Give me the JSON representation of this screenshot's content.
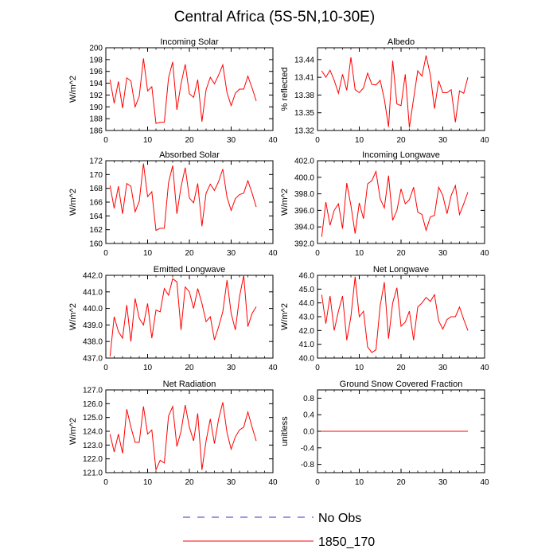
{
  "title": "Central Africa (5S-5N,10-30E)",
  "legend": [
    {
      "label": "No Obs",
      "color": "#3333cc",
      "style": "dashed"
    },
    {
      "label": "1850_170",
      "color": "#ff0000",
      "style": "solid"
    }
  ],
  "chart_data": [
    {
      "type": "line",
      "title": "Incoming Solar",
      "ylabel": "W/m^2",
      "xlim": [
        0,
        40
      ],
      "ylim": [
        186,
        200
      ],
      "xticks": [
        "0",
        "10",
        "20",
        "30",
        "40"
      ],
      "yticks": [
        "186",
        "188",
        "190",
        "192",
        "194",
        "196",
        "198",
        "200"
      ],
      "series": [
        {
          "name": "1850_170",
          "x": [
            1,
            2,
            3,
            4,
            5,
            6,
            7,
            8,
            9,
            10,
            11,
            12,
            13,
            14,
            15,
            16,
            17,
            18,
            19,
            20,
            21,
            22,
            23,
            24,
            25,
            26,
            27,
            28,
            29,
            30,
            31,
            32,
            33,
            34,
            35,
            36
          ],
          "values": [
            194.6,
            190.6,
            194.3,
            189.8,
            194.9,
            194.4,
            190.0,
            191.8,
            198.2,
            192.7,
            193.4,
            187.2,
            187.4,
            187.4,
            194.9,
            197.6,
            189.5,
            193.9,
            197.2,
            192.2,
            191.6,
            194.6,
            187.5,
            192.9,
            195.0,
            193.9,
            195.4,
            197.1,
            192.4,
            190.2,
            192.3,
            193.0,
            193.0,
            195.2,
            193.2,
            191.0
          ]
        }
      ]
    },
    {
      "type": "line",
      "title": "Albedo",
      "ylabel": "% reflected",
      "xlim": [
        0,
        40
      ],
      "ylim": [
        13.32,
        13.46
      ],
      "xticks": [
        "0",
        "10",
        "20",
        "30",
        "40"
      ],
      "yticks": [
        "13.32",
        "13.35",
        "13.38",
        "13.41",
        "13.44"
      ],
      "series": [
        {
          "name": "1850_170",
          "x": [
            1,
            2,
            3,
            4,
            5,
            6,
            7,
            8,
            9,
            10,
            11,
            12,
            13,
            14,
            15,
            16,
            17,
            18,
            19,
            20,
            21,
            22,
            23,
            24,
            25,
            26,
            27,
            28,
            29,
            30,
            31,
            32,
            33,
            34,
            35,
            36
          ],
          "values": [
            13.421,
            13.41,
            13.422,
            13.405,
            13.383,
            13.415,
            13.388,
            13.444,
            13.389,
            13.384,
            13.392,
            13.417,
            13.398,
            13.397,
            13.405,
            13.373,
            13.326,
            13.438,
            13.365,
            13.362,
            13.415,
            13.325,
            13.374,
            13.421,
            13.412,
            13.447,
            13.414,
            13.357,
            13.404,
            13.384,
            13.384,
            13.389,
            13.334,
            13.387,
            13.383,
            13.41
          ]
        }
      ]
    },
    {
      "type": "line",
      "title": "Absorbed Solar",
      "ylabel": "W/m^2",
      "xlim": [
        0,
        40
      ],
      "ylim": [
        160,
        172
      ],
      "xticks": [
        "0",
        "10",
        "20",
        "30",
        "40"
      ],
      "yticks": [
        "160",
        "162",
        "164",
        "166",
        "168",
        "170",
        "172"
      ],
      "series": [
        {
          "name": "1850_170",
          "x": [
            1,
            2,
            3,
            4,
            5,
            6,
            7,
            8,
            9,
            10,
            11,
            12,
            13,
            14,
            15,
            16,
            17,
            18,
            19,
            20,
            21,
            22,
            23,
            24,
            25,
            26,
            27,
            28,
            29,
            30,
            31,
            32,
            33,
            34,
            35,
            36
          ],
          "values": [
            168.4,
            165.1,
            168.3,
            164.3,
            168.7,
            168.3,
            164.6,
            166.1,
            171.6,
            166.8,
            167.5,
            161.9,
            162.2,
            162.2,
            168.8,
            171.3,
            164.3,
            168.2,
            171.0,
            166.6,
            165.9,
            168.7,
            162.5,
            167.3,
            168.6,
            167.7,
            169.0,
            170.8,
            166.7,
            164.8,
            166.5,
            167.1,
            167.3,
            169.1,
            167.3,
            165.3
          ]
        }
      ]
    },
    {
      "type": "line",
      "title": "Incoming Longwave",
      "ylabel": "W/m^2",
      "xlim": [
        0,
        40
      ],
      "ylim": [
        392.0,
        402.0
      ],
      "xticks": [
        "0",
        "10",
        "20",
        "30",
        "40"
      ],
      "yticks": [
        "392.0",
        "394.0",
        "396.0",
        "398.0",
        "400.0",
        "402.0"
      ],
      "series": [
        {
          "name": "1850_170",
          "x": [
            1,
            2,
            3,
            4,
            5,
            6,
            7,
            8,
            9,
            10,
            11,
            12,
            13,
            14,
            15,
            16,
            17,
            18,
            19,
            20,
            21,
            22,
            23,
            24,
            25,
            26,
            27,
            28,
            29,
            30,
            31,
            32,
            33,
            34,
            35,
            36
          ],
          "values": [
            392.8,
            397.0,
            394.2,
            396.0,
            396.8,
            393.8,
            399.3,
            396.6,
            393.2,
            396.9,
            395.0,
            399.2,
            399.6,
            400.7,
            397.4,
            396.3,
            400.2,
            394.8,
            396.0,
            398.6,
            396.8,
            397.3,
            398.8,
            395.8,
            395.5,
            393.6,
            395.2,
            395.4,
            398.8,
            397.8,
            395.6,
            397.8,
            399.0,
            395.5,
            396.8,
            398.2
          ]
        }
      ]
    },
    {
      "type": "line",
      "title": "Emitted Longwave",
      "ylabel": "W/m^2",
      "xlim": [
        0,
        40
      ],
      "ylim": [
        437.0,
        442.0
      ],
      "xticks": [
        "0",
        "10",
        "20",
        "30",
        "40"
      ],
      "yticks": [
        "437.0",
        "438.0",
        "439.0",
        "440.0",
        "441.0",
        "442.0"
      ],
      "series": [
        {
          "name": "1850_170",
          "x": [
            1,
            2,
            3,
            4,
            5,
            6,
            7,
            8,
            9,
            10,
            11,
            12,
            13,
            14,
            15,
            16,
            17,
            18,
            19,
            20,
            21,
            22,
            23,
            24,
            25,
            26,
            27,
            28,
            29,
            30,
            31,
            32,
            33,
            34,
            35,
            36
          ],
          "values": [
            437.1,
            439.5,
            438.6,
            438.2,
            440.2,
            438.0,
            440.6,
            439.4,
            439.0,
            440.3,
            438.2,
            439.9,
            439.8,
            441.2,
            440.8,
            441.8,
            441.6,
            438.7,
            441.3,
            441.0,
            440.0,
            441.2,
            440.3,
            439.2,
            439.5,
            438.1,
            438.9,
            439.8,
            441.7,
            439.7,
            438.7,
            440.7,
            442.0,
            438.9,
            439.7,
            440.1
          ]
        }
      ]
    },
    {
      "type": "line",
      "title": "Net Longwave",
      "ylabel": "W/m^2",
      "xlim": [
        0,
        40
      ],
      "ylim": [
        40.0,
        46.0
      ],
      "xticks": [
        "0",
        "10",
        "20",
        "30",
        "40"
      ],
      "yticks": [
        "40.0",
        "41.0",
        "42.0",
        "43.0",
        "44.0",
        "45.0",
        "46.0"
      ],
      "series": [
        {
          "name": "1850_170",
          "x": [
            1,
            2,
            3,
            4,
            5,
            6,
            7,
            8,
            9,
            10,
            11,
            12,
            13,
            14,
            15,
            16,
            17,
            18,
            19,
            20,
            21,
            22,
            23,
            24,
            25,
            26,
            27,
            28,
            29,
            30,
            31,
            32,
            33,
            34,
            35,
            36
          ],
          "values": [
            44.6,
            42.5,
            44.5,
            42.0,
            43.4,
            44.5,
            41.3,
            43.0,
            45.9,
            43.0,
            43.4,
            40.8,
            40.4,
            40.6,
            43.8,
            45.5,
            41.4,
            44.0,
            45.1,
            42.3,
            42.6,
            43.4,
            41.3,
            43.7,
            44.0,
            44.4,
            44.1,
            44.6,
            42.7,
            42.1,
            42.8,
            43.0,
            43.0,
            43.7,
            42.8,
            42.0
          ]
        }
      ]
    },
    {
      "type": "line",
      "title": "Net Radiation",
      "ylabel": "W/m^2",
      "xlim": [
        0,
        40
      ],
      "ylim": [
        121.0,
        127.0
      ],
      "xticks": [
        "0",
        "10",
        "20",
        "30",
        "40"
      ],
      "yticks": [
        "121.0",
        "122.0",
        "123.0",
        "124.0",
        "125.0",
        "126.0",
        "127.0"
      ],
      "series": [
        {
          "name": "1850_170",
          "x": [
            1,
            2,
            3,
            4,
            5,
            6,
            7,
            8,
            9,
            10,
            11,
            12,
            13,
            14,
            15,
            16,
            17,
            18,
            19,
            20,
            21,
            22,
            23,
            24,
            25,
            26,
            27,
            28,
            29,
            30,
            31,
            32,
            33,
            34,
            35,
            36
          ],
          "values": [
            123.8,
            122.5,
            123.8,
            122.4,
            125.6,
            124.3,
            123.2,
            123.2,
            125.8,
            123.8,
            124.1,
            121.2,
            121.9,
            121.7,
            125.1,
            125.8,
            122.9,
            124.0,
            125.9,
            124.3,
            123.3,
            125.3,
            121.2,
            123.3,
            124.9,
            123.1,
            124.9,
            126.1,
            123.9,
            122.7,
            123.6,
            124.1,
            124.3,
            125.4,
            124.3,
            123.3
          ]
        }
      ]
    },
    {
      "type": "line",
      "title": "Ground Snow Covered Fraction",
      "ylabel": "unitless",
      "xlim": [
        0,
        40
      ],
      "ylim": [
        -1.0,
        1.0
      ],
      "xticks": [
        "0",
        "10",
        "20",
        "30",
        "40"
      ],
      "yticks": [
        "-0.8",
        "-0.4",
        "0.0",
        "0.4",
        "0.8"
      ],
      "series": [
        {
          "name": "1850_170",
          "x": [
            1,
            36
          ],
          "values": [
            0.0,
            0.0
          ]
        }
      ]
    }
  ]
}
